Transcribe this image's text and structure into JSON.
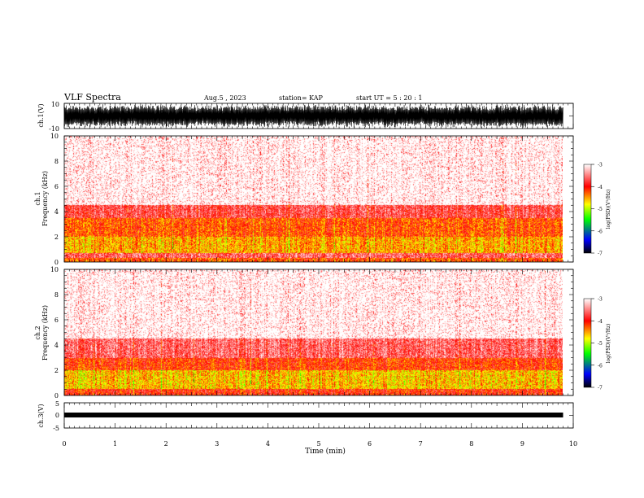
{
  "header": {
    "title": "VLF Spectra",
    "date": "Aug.5 , 2023",
    "station": "station= KAP",
    "start": "start UT = 5 : 20 : 1"
  },
  "chart_data": [
    {
      "type": "line",
      "name": "ch1-waveform",
      "ylabel": "ch.1(V)",
      "ylim": [
        -10,
        10
      ],
      "y_ticks": [
        "10",
        "-10"
      ],
      "xlim": [
        0,
        10
      ]
    },
    {
      "type": "heatmap",
      "name": "ch1-spectrogram",
      "ylabel_line1": "ch.1",
      "ylabel_line2": "Frequency (kHz)",
      "ylim": [
        0,
        10
      ],
      "y_ticks": [
        0,
        2,
        4,
        6,
        8,
        10
      ],
      "xlim": [
        0,
        10
      ],
      "data_end_min": 9.8,
      "log_psd_profile": [
        {
          "f_khz": [
            0,
            0.3
          ],
          "log_psd": -4.2
        },
        {
          "f_khz": [
            0.3,
            0.7
          ],
          "log_psd": -3.6
        },
        {
          "f_khz": [
            0.7,
            2.0
          ],
          "log_psd": -4.5
        },
        {
          "f_khz": [
            2.0,
            3.5
          ],
          "log_psd": -4.2
        },
        {
          "f_khz": [
            3.5,
            4.5
          ],
          "log_psd": -3.7
        },
        {
          "f_khz": [
            4.5,
            10
          ],
          "log_psd": -3.2
        }
      ],
      "colorbar": {
        "label": "log(PSD)(V²/Hz)",
        "range": [
          -7,
          -3
        ],
        "ticks": [
          "-3",
          "-4",
          "-5",
          "-6",
          "-7"
        ],
        "colors": [
          "#ffffff",
          "#ff0000",
          "#ffff00",
          "#00ff00",
          "#0000ff",
          "#000000"
        ]
      }
    },
    {
      "type": "heatmap",
      "name": "ch2-spectrogram",
      "ylabel_line1": "ch.2",
      "ylabel_line2": "Frequency (kHz)",
      "ylim": [
        0,
        10
      ],
      "y_ticks": [
        0,
        2,
        4,
        6,
        8,
        10
      ],
      "xlim": [
        0,
        10
      ],
      "data_end_min": 9.8,
      "log_psd_profile": [
        {
          "f_khz": [
            0,
            0.5
          ],
          "log_psd": -4.0
        },
        {
          "f_khz": [
            0.5,
            2.0
          ],
          "log_psd": -4.6
        },
        {
          "f_khz": [
            2.0,
            3.0
          ],
          "log_psd": -4.1
        },
        {
          "f_khz": [
            3.0,
            4.5
          ],
          "log_psd": -3.6
        },
        {
          "f_khz": [
            4.5,
            10
          ],
          "log_psd": -3.2
        }
      ],
      "colorbar": {
        "label": "log(PSD)(V²/Hz)",
        "range": [
          -7,
          -3
        ],
        "ticks": [
          "-3",
          "-4",
          "-5",
          "-6",
          "-7"
        ],
        "colors": [
          "#ffffff",
          "#ff0000",
          "#ffff00",
          "#00ff00",
          "#0000ff",
          "#000000"
        ]
      }
    },
    {
      "type": "line",
      "name": "ch3-waveform",
      "ylabel": "ch.3(V)",
      "ylim": [
        -5,
        5
      ],
      "y_ticks": [
        "5",
        "0",
        "-5"
      ],
      "xlim": [
        0,
        10
      ],
      "x_ticks": [
        0,
        1,
        2,
        3,
        4,
        5,
        6,
        7,
        8,
        9,
        10
      ],
      "xlabel": "Time (min)"
    }
  ],
  "colors": {
    "axis": "#000000",
    "waveform": "#000000",
    "spectrogram_high": "#ff0000",
    "spectrogram_mid": "#ffff00",
    "spectrogram_low": "#00ff00"
  }
}
